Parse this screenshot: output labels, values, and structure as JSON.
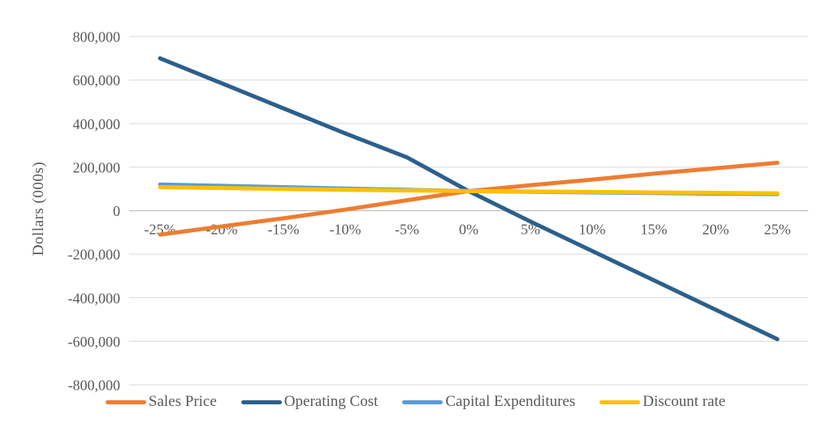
{
  "chart_data": {
    "type": "line",
    "title": "",
    "ylabel": "Dollars (000s)",
    "xlabel": "",
    "ylim": [
      -800000,
      800000
    ],
    "ytick_interval": 200000,
    "ytick_labels": [
      "800,000",
      "600,000",
      "400,000",
      "200,000",
      "0",
      "-200,000",
      "-400,000",
      "-600,000",
      "-800,000"
    ],
    "categories": [
      "-25%",
      "-20%",
      "-15%",
      "-10%",
      "-5%",
      "0%",
      "5%",
      "10%",
      "15%",
      "20%",
      "25%"
    ],
    "grid": "horizontal",
    "legend_position": "bottom",
    "base_value_at_0pct": 90000,
    "series": [
      {
        "name": "Sales Price",
        "color": "#ED7D31",
        "values": [
          -110000,
          -72000,
          -35000,
          5000,
          48000,
          90000,
          117000,
          143000,
          170000,
          195000,
          220000
        ]
      },
      {
        "name": "Operating Cost",
        "color": "#2C5F8C",
        "values": [
          700000,
          585000,
          470000,
          355000,
          245000,
          90000,
          -50000,
          -185000,
          -320000,
          -455000,
          -590000
        ]
      },
      {
        "name": "Capital Expenditures",
        "color": "#5B9BD5",
        "values": [
          120000,
          114000,
          108000,
          102000,
          96000,
          90000,
          87000,
          84000,
          81000,
          78000,
          76000
        ]
      },
      {
        "name": "Discount rate",
        "color": "#FFC000",
        "values": [
          108000,
          104000,
          100000,
          96000,
          93000,
          90000,
          88000,
          86000,
          84000,
          82000,
          80000
        ]
      }
    ],
    "style": {
      "text_color": "#595959",
      "gridline_color": "#D9D9D9",
      "axis_line_color": "#BFBFBF",
      "background_color": "#FFFFFF"
    }
  }
}
